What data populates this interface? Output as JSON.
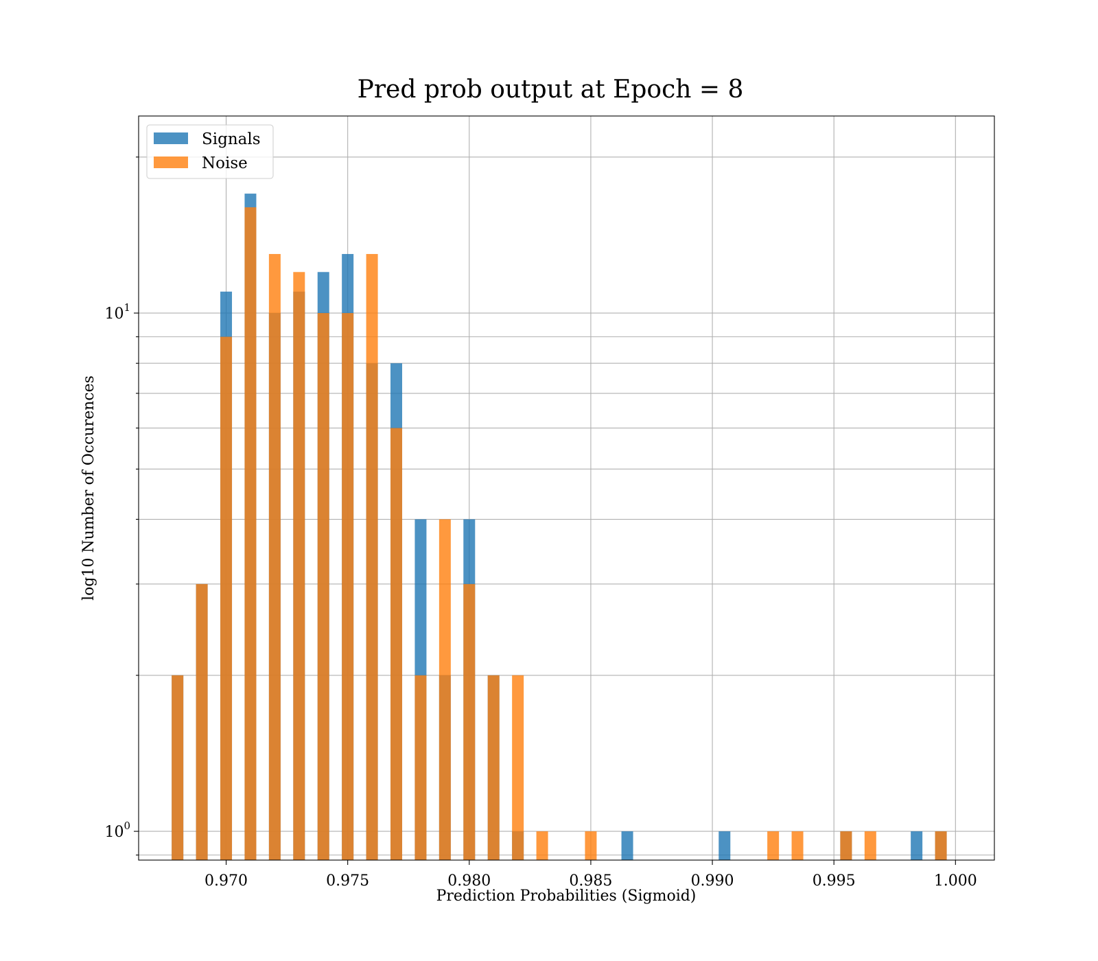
{
  "chart_data": {
    "type": "bar",
    "title": "Pred prob output at Epoch = 8",
    "xlabel": "Prediction Probabilities (Sigmoid)",
    "ylabel": "log10 Number of Occurences",
    "xlim": [
      0.9664,
      1.0016
    ],
    "ylim": [
      0.88,
      24
    ],
    "yscale": "log",
    "bar_width": 0.00048,
    "x_ticks": [
      0.97,
      0.975,
      0.98,
      0.985,
      0.99,
      0.995,
      1.0
    ],
    "x_tick_labels": [
      "0.970",
      "0.975",
      "0.980",
      "0.985",
      "0.990",
      "0.995",
      "1.000"
    ],
    "y_major_ticks": [
      {
        "value": 1,
        "base": "10",
        "exp": "0"
      },
      {
        "value": 10,
        "base": "10",
        "exp": "1"
      }
    ],
    "y_minor_ticks": [
      0.9,
      2,
      3,
      4,
      5,
      6,
      7,
      8,
      9,
      20
    ],
    "grid": true,
    "legend_position": "top-left",
    "series": [
      {
        "name": "Signals",
        "color": "#1f77b4",
        "opacity": 0.8,
        "x": [
          0.968,
          0.969,
          0.97,
          0.971,
          0.972,
          0.973,
          0.974,
          0.975,
          0.976,
          0.977,
          0.978,
          0.979,
          0.98,
          0.981,
          0.982,
          0.9865,
          0.9905,
          0.9955,
          0.9984,
          0.9994
        ],
        "values": [
          2,
          3,
          11,
          17,
          10,
          11,
          12,
          13,
          8,
          8,
          4,
          2,
          4,
          2,
          1,
          1,
          1,
          1,
          1,
          1
        ]
      },
      {
        "name": "Noise",
        "color": "#ff7f0e",
        "opacity": 0.8,
        "x": [
          0.968,
          0.969,
          0.97,
          0.971,
          0.972,
          0.973,
          0.974,
          0.975,
          0.976,
          0.977,
          0.978,
          0.979,
          0.98,
          0.981,
          0.982,
          0.983,
          0.985,
          0.9925,
          0.9935,
          0.9955,
          0.9965,
          0.9994
        ],
        "values": [
          2,
          3,
          9,
          16,
          13,
          12,
          10,
          10,
          13,
          6,
          2,
          4,
          3,
          2,
          2,
          1,
          1,
          1,
          1,
          1,
          1,
          1
        ]
      }
    ]
  }
}
